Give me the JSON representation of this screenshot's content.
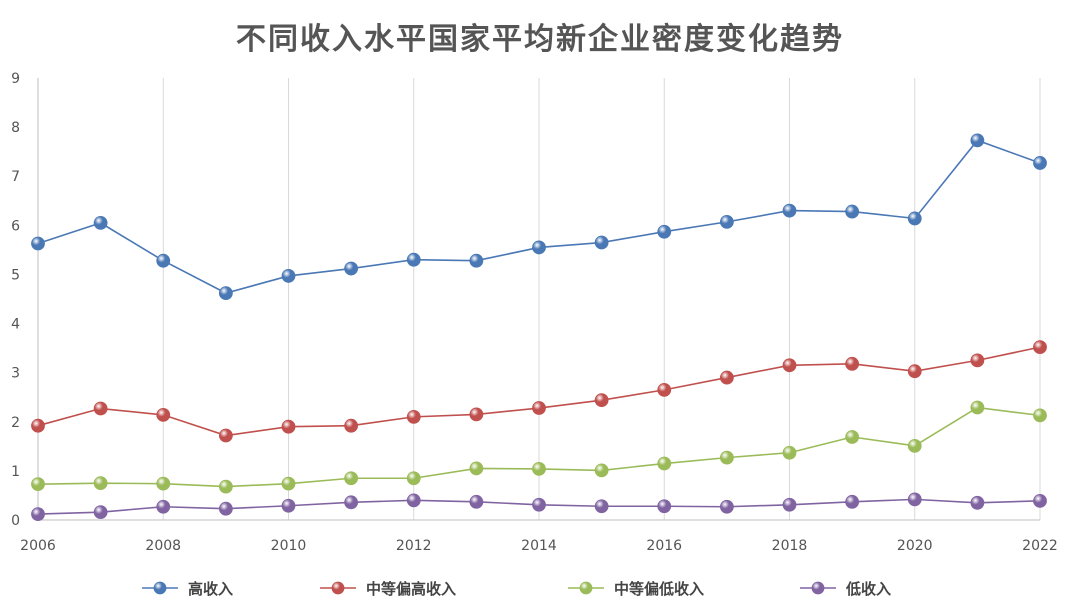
{
  "chart_data": {
    "type": "line",
    "title": "不同收入水平国家平均新企业密度变化趋势",
    "x": [
      "2006",
      "2007",
      "2008",
      "2009",
      "2010",
      "2011",
      "2012",
      "2013",
      "2014",
      "2015",
      "2016",
      "2017",
      "2018",
      "2019",
      "2020",
      "2021",
      "2022"
    ],
    "x_tick_labels": [
      "2006",
      "2008",
      "2010",
      "2012",
      "2014",
      "2016",
      "2018",
      "2020",
      "2022"
    ],
    "ylim": [
      0,
      9
    ],
    "y_ticks": [
      "0",
      "1",
      "2",
      "3",
      "4",
      "5",
      "6",
      "7",
      "8",
      "9"
    ],
    "grid": "vertical",
    "legend_position": "bottom",
    "series": [
      {
        "name": "高收入",
        "color": "#4a78b5",
        "values": [
          5.63,
          6.05,
          5.28,
          4.62,
          4.97,
          5.12,
          5.3,
          5.28,
          5.55,
          5.65,
          5.87,
          6.07,
          6.3,
          6.28,
          6.14,
          7.73,
          7.27
        ]
      },
      {
        "name": "中等偏高收入",
        "color": "#c0504d",
        "values": [
          1.92,
          2.27,
          2.14,
          1.72,
          1.9,
          1.92,
          2.1,
          2.15,
          2.28,
          2.44,
          2.65,
          2.9,
          3.15,
          3.18,
          3.03,
          3.25,
          3.52
        ]
      },
      {
        "name": "中等偏低收入",
        "color": "#9bbb59",
        "values": [
          0.73,
          0.75,
          0.74,
          0.68,
          0.74,
          0.85,
          0.85,
          1.05,
          1.04,
          1.01,
          1.15,
          1.27,
          1.37,
          1.69,
          1.51,
          2.29,
          2.13
        ]
      },
      {
        "name": "低收入",
        "color": "#8064a2",
        "values": [
          0.12,
          0.16,
          0.27,
          0.23,
          0.29,
          0.36,
          0.4,
          0.37,
          0.31,
          0.28,
          0.28,
          0.27,
          0.31,
          0.37,
          0.42,
          0.35,
          0.39
        ]
      }
    ]
  }
}
